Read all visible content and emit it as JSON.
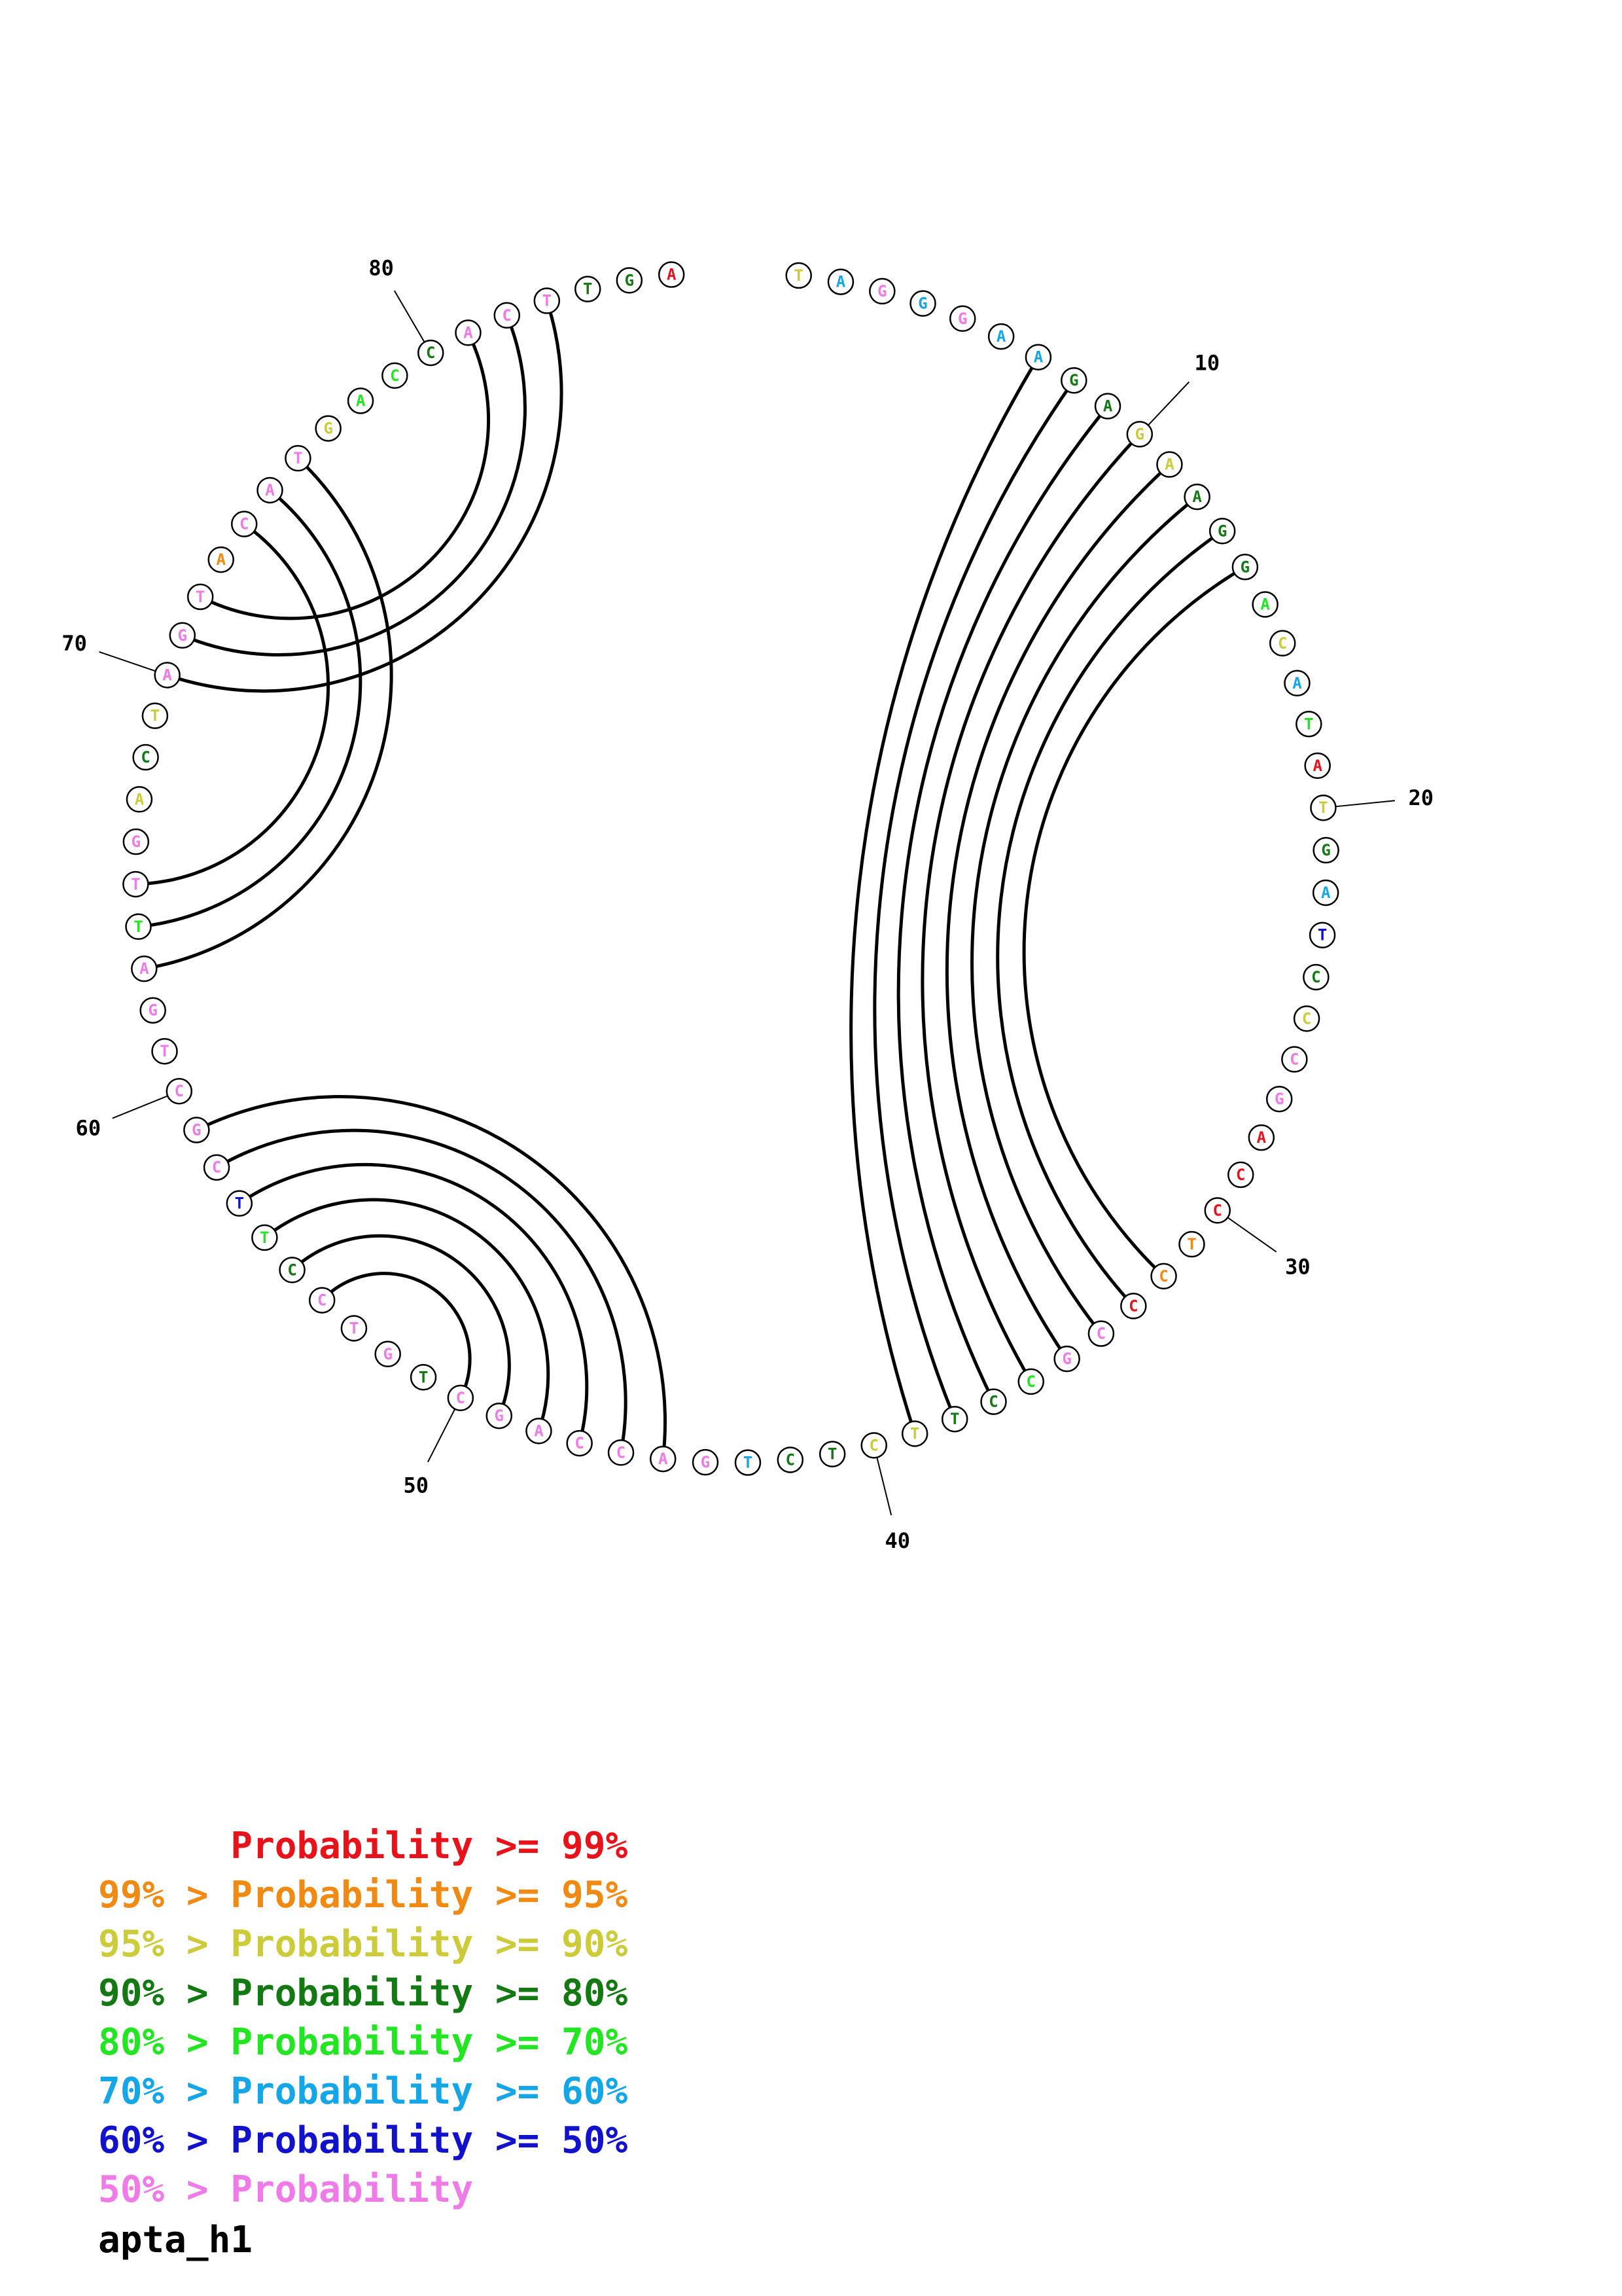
{
  "sequence_name": "apta_h1",
  "colors": {
    "p99": "#e8121b",
    "p95": "#f08a12",
    "p90": "#cccc3a",
    "p80": "#137a13",
    "p70": "#22e622",
    "p60": "#14a6e6",
    "p50": "#1212cc",
    "plt50": "#f07ae8"
  },
  "bases": [
    {
      "n": 1,
      "b": "T",
      "c": "p90"
    },
    {
      "n": 2,
      "b": "A",
      "c": "p60"
    },
    {
      "n": 3,
      "b": "G",
      "c": "plt50"
    },
    {
      "n": 4,
      "b": "G",
      "c": "p60"
    },
    {
      "n": 5,
      "b": "G",
      "c": "plt50"
    },
    {
      "n": 6,
      "b": "A",
      "c": "p60"
    },
    {
      "n": 7,
      "b": "A",
      "c": "p60"
    },
    {
      "n": 8,
      "b": "G",
      "c": "p80"
    },
    {
      "n": 9,
      "b": "A",
      "c": "p80"
    },
    {
      "n": 10,
      "b": "G",
      "c": "p90"
    },
    {
      "n": 11,
      "b": "A",
      "c": "p90"
    },
    {
      "n": 12,
      "b": "A",
      "c": "p80"
    },
    {
      "n": 13,
      "b": "G",
      "c": "p80"
    },
    {
      "n": 14,
      "b": "G",
      "c": "p80"
    },
    {
      "n": 15,
      "b": "A",
      "c": "p70"
    },
    {
      "n": 16,
      "b": "C",
      "c": "p90"
    },
    {
      "n": 17,
      "b": "A",
      "c": "p60"
    },
    {
      "n": 18,
      "b": "T",
      "c": "p70"
    },
    {
      "n": 19,
      "b": "A",
      "c": "p99"
    },
    {
      "n": 20,
      "b": "T",
      "c": "p90"
    },
    {
      "n": 21,
      "b": "G",
      "c": "p80"
    },
    {
      "n": 22,
      "b": "A",
      "c": "p60"
    },
    {
      "n": 23,
      "b": "T",
      "c": "p50"
    },
    {
      "n": 24,
      "b": "C",
      "c": "p80"
    },
    {
      "n": 25,
      "b": "C",
      "c": "p90"
    },
    {
      "n": 26,
      "b": "C",
      "c": "plt50"
    },
    {
      "n": 27,
      "b": "G",
      "c": "plt50"
    },
    {
      "n": 28,
      "b": "A",
      "c": "p99"
    },
    {
      "n": 29,
      "b": "C",
      "c": "p99"
    },
    {
      "n": 30,
      "b": "C",
      "c": "p99"
    },
    {
      "n": 31,
      "b": "T",
      "c": "p95"
    },
    {
      "n": 32,
      "b": "C",
      "c": "p95"
    },
    {
      "n": 33,
      "b": "C",
      "c": "p99"
    },
    {
      "n": 34,
      "b": "C",
      "c": "plt50"
    },
    {
      "n": 35,
      "b": "G",
      "c": "plt50"
    },
    {
      "n": 36,
      "b": "C",
      "c": "p70"
    },
    {
      "n": 37,
      "b": "C",
      "c": "p80"
    },
    {
      "n": 38,
      "b": "T",
      "c": "p80"
    },
    {
      "n": 39,
      "b": "T",
      "c": "p90"
    },
    {
      "n": 40,
      "b": "C",
      "c": "p90"
    },
    {
      "n": 41,
      "b": "T",
      "c": "p80"
    },
    {
      "n": 42,
      "b": "C",
      "c": "p80"
    },
    {
      "n": 43,
      "b": "T",
      "c": "p60"
    },
    {
      "n": 44,
      "b": "G",
      "c": "plt50"
    },
    {
      "n": 45,
      "b": "A",
      "c": "plt50"
    },
    {
      "n": 46,
      "b": "C",
      "c": "plt50"
    },
    {
      "n": 47,
      "b": "C",
      "c": "plt50"
    },
    {
      "n": 48,
      "b": "A",
      "c": "plt50"
    },
    {
      "n": 49,
      "b": "G",
      "c": "plt50"
    },
    {
      "n": 50,
      "b": "C",
      "c": "plt50"
    },
    {
      "n": 51,
      "b": "T",
      "c": "p80"
    },
    {
      "n": 52,
      "b": "G",
      "c": "plt50"
    },
    {
      "n": 53,
      "b": "T",
      "c": "plt50"
    },
    {
      "n": 54,
      "b": "C",
      "c": "plt50"
    },
    {
      "n": 55,
      "b": "C",
      "c": "p80"
    },
    {
      "n": 56,
      "b": "T",
      "c": "p70"
    },
    {
      "n": 57,
      "b": "T",
      "c": "p50"
    },
    {
      "n": 58,
      "b": "C",
      "c": "plt50"
    },
    {
      "n": 59,
      "b": "G",
      "c": "plt50"
    },
    {
      "n": 60,
      "b": "C",
      "c": "plt50"
    },
    {
      "n": 61,
      "b": "T",
      "c": "plt50"
    },
    {
      "n": 62,
      "b": "G",
      "c": "plt50"
    },
    {
      "n": 63,
      "b": "A",
      "c": "plt50"
    },
    {
      "n": 64,
      "b": "T",
      "c": "p70"
    },
    {
      "n": 65,
      "b": "T",
      "c": "plt50"
    },
    {
      "n": 66,
      "b": "G",
      "c": "plt50"
    },
    {
      "n": 67,
      "b": "A",
      "c": "p90"
    },
    {
      "n": 68,
      "b": "C",
      "c": "p80"
    },
    {
      "n": 69,
      "b": "T",
      "c": "p90"
    },
    {
      "n": 70,
      "b": "A",
      "c": "plt50"
    },
    {
      "n": 71,
      "b": "G",
      "c": "plt50"
    },
    {
      "n": 72,
      "b": "T",
      "c": "plt50"
    },
    {
      "n": 73,
      "b": "A",
      "c": "p95"
    },
    {
      "n": 74,
      "b": "C",
      "c": "plt50"
    },
    {
      "n": 75,
      "b": "A",
      "c": "plt50"
    },
    {
      "n": 76,
      "b": "T",
      "c": "plt50"
    },
    {
      "n": 77,
      "b": "G",
      "c": "p90"
    },
    {
      "n": 78,
      "b": "A",
      "c": "p70"
    },
    {
      "n": 79,
      "b": "C",
      "c": "p70"
    },
    {
      "n": 80,
      "b": "C",
      "c": "p80"
    },
    {
      "n": 81,
      "b": "A",
      "c": "plt50"
    },
    {
      "n": 82,
      "b": "C",
      "c": "plt50"
    },
    {
      "n": 83,
      "b": "T",
      "c": "plt50"
    },
    {
      "n": 84,
      "b": "T",
      "c": "p80"
    },
    {
      "n": 85,
      "b": "G",
      "c": "p80"
    },
    {
      "n": 86,
      "b": "A",
      "c": "p99"
    }
  ],
  "pairs": [
    [
      7,
      39
    ],
    [
      8,
      38
    ],
    [
      9,
      37
    ],
    [
      10,
      36
    ],
    [
      11,
      35
    ],
    [
      12,
      34
    ],
    [
      13,
      33
    ],
    [
      14,
      32
    ],
    [
      45,
      59
    ],
    [
      46,
      58
    ],
    [
      47,
      57
    ],
    [
      48,
      56
    ],
    [
      49,
      55
    ],
    [
      50,
      54
    ],
    [
      70,
      83
    ],
    [
      71,
      82
    ],
    [
      72,
      81
    ],
    [
      63,
      76
    ],
    [
      64,
      75
    ],
    [
      65,
      74
    ]
  ],
  "tick_labels": [
    {
      "n": 10,
      "label": "10"
    },
    {
      "n": 20,
      "label": "20"
    },
    {
      "n": 30,
      "label": "30"
    },
    {
      "n": 40,
      "label": "40"
    },
    {
      "n": 50,
      "label": "50"
    },
    {
      "n": 60,
      "label": "60"
    },
    {
      "n": 70,
      "label": "70"
    },
    {
      "n": 80,
      "label": "80"
    }
  ],
  "legend": [
    {
      "text": "      Probability >= 99%",
      "c": "p99"
    },
    {
      "text": "99% > Probability >= 95%",
      "c": "p95"
    },
    {
      "text": "95% > Probability >= 90%",
      "c": "p90"
    },
    {
      "text": "90% > Probability >= 80%",
      "c": "p80"
    },
    {
      "text": "80% > Probability >= 70%",
      "c": "p70"
    },
    {
      "text": "70% > Probability >= 60%",
      "c": "p60"
    },
    {
      "text": "60% > Probability >= 50%",
      "c": "p50"
    },
    {
      "text": "50% > Probability",
      "c": "plt50"
    }
  ]
}
